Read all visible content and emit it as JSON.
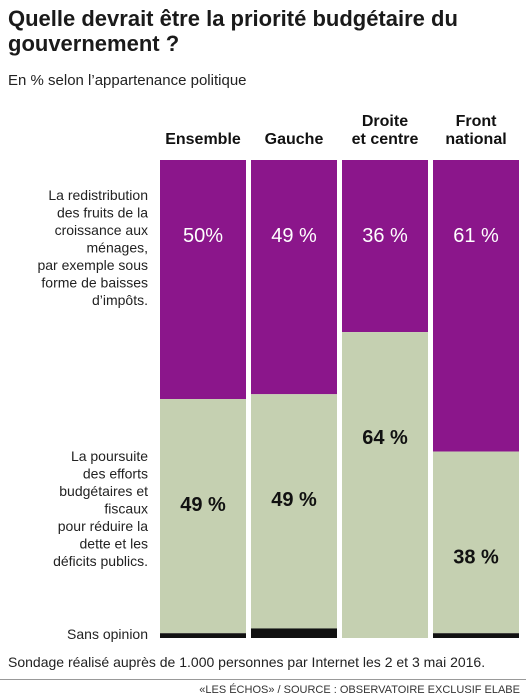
{
  "title": "Quelle devrait être la priorité budgétaire du gouvernement ?",
  "subtitle": "En % selon l’appartenance politique",
  "note": "Sondage réalisé auprès de 1.000 personnes par Internet les 2 et 3 mai 2016.",
  "source": "«LES ÉCHOS» / SOURCE : OBSERVATOIRE EXCLUSIF ELABE",
  "chart_data": {
    "type": "bar",
    "stacked": true,
    "percent": true,
    "categories": [
      [
        "Ensemble"
      ],
      [
        "Gauche"
      ],
      [
        "Droite",
        "et centre"
      ],
      [
        "Front",
        "national"
      ]
    ],
    "series": [
      {
        "name": [
          "La redistribution",
          "des fruits de la",
          "croissance aux",
          "ménages,",
          "par exemple sous",
          "forme de baisses",
          "d’impôts."
        ],
        "values": [
          50,
          49,
          36,
          61
        ],
        "labels": [
          "50%",
          "49 %",
          "36 %",
          "61 %"
        ],
        "color": "#8b168b"
      },
      {
        "name": [
          "La poursuite",
          "des efforts",
          "budgétaires et",
          "fiscaux",
          "pour réduire la",
          "dette et les",
          "déficits publics."
        ],
        "values": [
          49,
          49,
          64,
          38
        ],
        "labels": [
          "49 %",
          "49 %",
          "64 %",
          "38 %"
        ],
        "color": "#c5d0b1"
      },
      {
        "name": [
          "Sans opinion"
        ],
        "values": [
          1,
          2,
          0,
          1
        ],
        "labels": [
          "",
          "",
          "",
          ""
        ],
        "color": "#111111"
      }
    ]
  }
}
